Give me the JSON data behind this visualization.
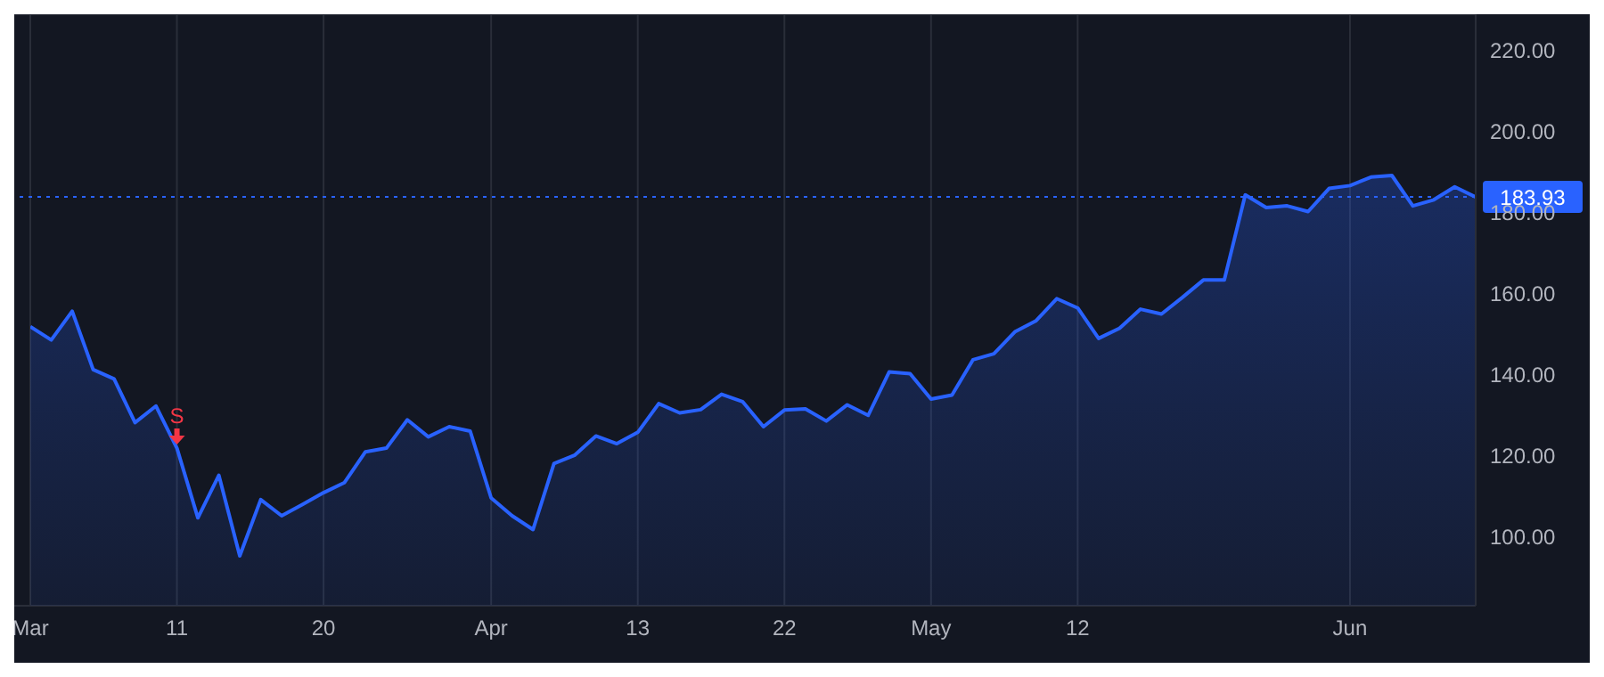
{
  "chart_data": {
    "type": "area",
    "categories": [
      "Mar",
      null,
      null,
      null,
      null,
      null,
      null,
      "11",
      null,
      null,
      null,
      null,
      null,
      null,
      "20",
      null,
      null,
      null,
      null,
      null,
      null,
      null,
      "Apr",
      null,
      null,
      null,
      null,
      null,
      null,
      "13",
      null,
      null,
      null,
      null,
      null,
      null,
      "22",
      null,
      null,
      null,
      null,
      null,
      null,
      "May",
      null,
      null,
      null,
      null,
      null,
      null,
      "12",
      null,
      null,
      null,
      null,
      null,
      null,
      null,
      null,
      null,
      null,
      null,
      null,
      "Jun",
      null,
      null,
      null,
      null,
      null,
      null
    ],
    "series": [
      {
        "color": "#2962ff",
        "values": [
          151.9,
          148.6,
          155.7,
          141.3,
          139.0,
          128.2,
          132.3,
          121.9,
          104.7,
          115.2,
          95.3,
          109.2,
          105.2,
          108.0,
          110.9,
          113.4,
          121.0,
          121.9,
          128.9,
          124.7,
          127.2,
          126.1,
          109.6,
          105.2,
          101.8,
          118.1,
          120.2,
          124.9,
          123.0,
          125.8,
          132.9,
          130.6,
          131.4,
          135.2,
          133.4,
          127.2,
          131.3,
          131.6,
          128.6,
          132.6,
          130.0,
          140.7,
          140.3,
          134.0,
          135.0,
          143.7,
          145.2,
          150.6,
          153.3,
          158.8,
          156.5,
          149.0,
          151.5,
          156.2,
          155.0,
          159.1,
          163.4,
          163.4,
          184.4,
          181.3,
          181.7,
          180.3,
          186.0,
          186.7,
          188.8,
          189.2,
          181.7,
          183.2,
          186.4,
          183.9
        ]
      }
    ],
    "ylim": [
      83,
      229
    ],
    "yticks": [
      {
        "value": 100,
        "label": "100.00"
      },
      {
        "value": 120,
        "label": "120.00"
      },
      {
        "value": 140,
        "label": "140.00"
      },
      {
        "value": 160,
        "label": "160.00"
      },
      {
        "value": 180,
        "label": "180.00"
      },
      {
        "value": 200,
        "label": "200.00"
      },
      {
        "value": 220,
        "label": "220.00"
      }
    ],
    "grid": true,
    "ref_lines": [
      {
        "axis": "y",
        "value": 183.93,
        "label": "183.93",
        "color": "#2962ff",
        "line_style": "dotted"
      }
    ],
    "annotations": [
      {
        "text": "S",
        "x": "11",
        "y": 121.9
      }
    ]
  }
}
